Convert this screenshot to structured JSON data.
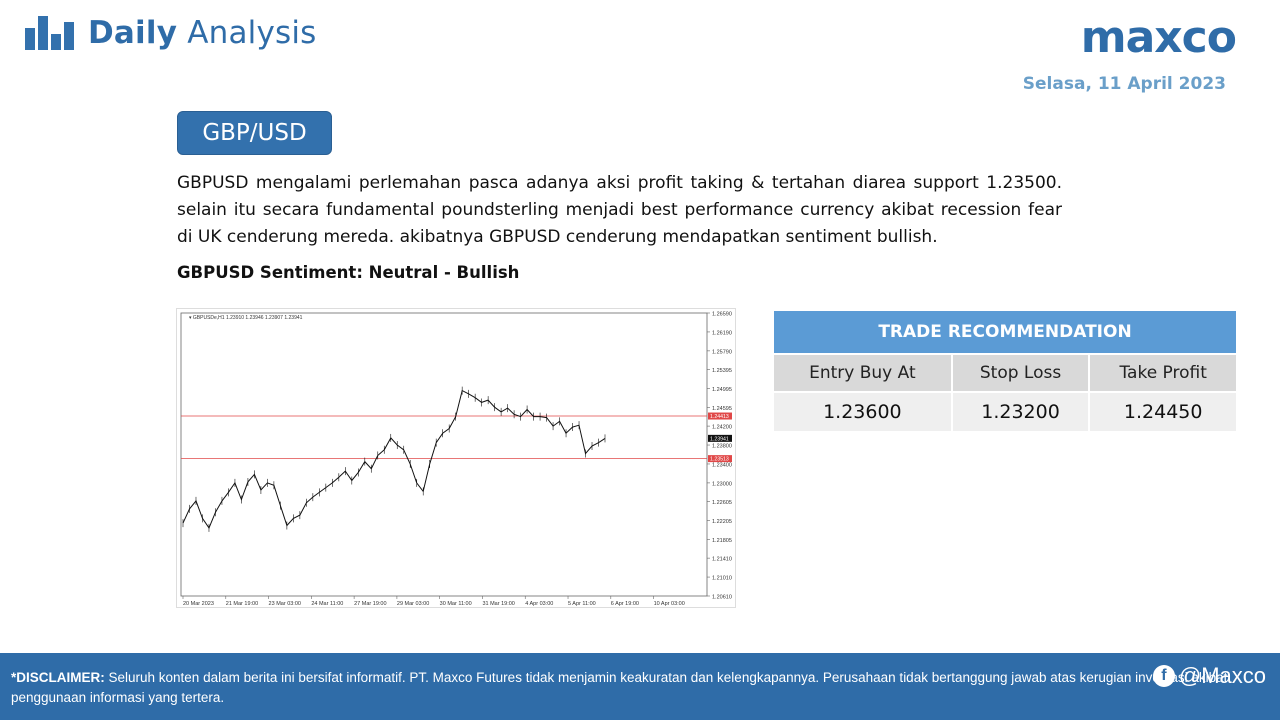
{
  "header": {
    "brand_bold": "Daily",
    "brand_light": "Analysis",
    "logo_text": "maxco",
    "date": "Selasa, 11 April 2023"
  },
  "pair": "GBP/USD",
  "analysis": "GBPUSD mengalami perlemahan pasca adanya aksi profit taking & tertahan diarea support 1.23500. selain itu secara fundamental poundsterling menjadi best performance currency akibat recession fear di UK cenderung mereda. akibatnya GBPUSD cenderung mendapatkan sentiment bullish.",
  "sentiment": "GBPUSD Sentiment: Neutral - Bullish",
  "chart_data": {
    "type": "line",
    "title": "GBPUSDe,H1  1.23910 1.23946 1.23907 1.23941",
    "x_ticks": [
      "20 Mar 2023",
      "21 Mar 19:00",
      "23 Mar 03:00",
      "24 Mar 11:00",
      "27 Mar 19:00",
      "29 Mar 03:00",
      "30 Mar 11:00",
      "31 Mar 19:00",
      "4 Apr 03:00",
      "5 Apr 11:00",
      "6 Apr 19:00",
      "10 Apr 03:00"
    ],
    "y_ticks": [
      "1.26590",
      "1.26190",
      "1.25790",
      "1.25395",
      "1.24995",
      "1.24595",
      "1.24200",
      "1.23800",
      "1.23400",
      "1.23000",
      "1.22605",
      "1.22205",
      "1.21805",
      "1.21410",
      "1.21010",
      "1.20610"
    ],
    "ylim": [
      1.2061,
      1.2659
    ],
    "series": [
      {
        "values": [
          1.2215,
          1.2245,
          1.2262,
          1.2225,
          1.2205,
          1.2238,
          1.2262,
          1.228,
          1.23,
          1.2265,
          1.2302,
          1.2318,
          1.2285,
          1.23,
          1.2295,
          1.2252,
          1.221,
          1.2225,
          1.2232,
          1.2258,
          1.227,
          1.228,
          1.229,
          1.23,
          1.2312,
          1.2325,
          1.2305,
          1.2322,
          1.2345,
          1.233,
          1.2358,
          1.237,
          1.2395,
          1.238,
          1.237,
          1.234,
          1.23,
          1.2282,
          1.234,
          1.2385,
          1.2405,
          1.2415,
          1.244,
          1.2495,
          1.2488,
          1.248,
          1.247,
          1.2475,
          1.246,
          1.245,
          1.2458,
          1.2445,
          1.244,
          1.2455,
          1.244,
          1.244,
          1.2438,
          1.242,
          1.243,
          1.2405,
          1.2418,
          1.2422,
          1.2362,
          1.2378,
          1.2385,
          1.2394
        ]
      }
    ],
    "hlines": [
      {
        "value": 1.24413,
        "label": "1.24413",
        "color": "#e04848"
      },
      {
        "value": 1.23513,
        "label": "1.23513",
        "color": "#e04848"
      }
    ],
    "current": {
      "value": 1.23941,
      "label": "1.23941"
    }
  },
  "trade": {
    "title": "TRADE RECOMMENDATION",
    "headers": [
      "Entry Buy At",
      "Stop Loss",
      "Take Profit"
    ],
    "values": [
      "1.23600",
      "1.23200",
      "1.24450"
    ]
  },
  "footer": {
    "disclaimer_label": "*DISCLAIMER:",
    "disclaimer_text": " Seluruh konten dalam berita ini bersifat informatif. PT. Maxco Futures tidak menjamin keakuratan dan kelengkapannya. Perusahaan tidak bertanggung jawab atas kerugian investasi akibat penggunaan informasi yang tertera.",
    "social_handle": "@Maxco"
  },
  "colors": {
    "brand": "#2f6ca8",
    "table_header": "#5b9bd5",
    "level_line": "#e04848"
  }
}
